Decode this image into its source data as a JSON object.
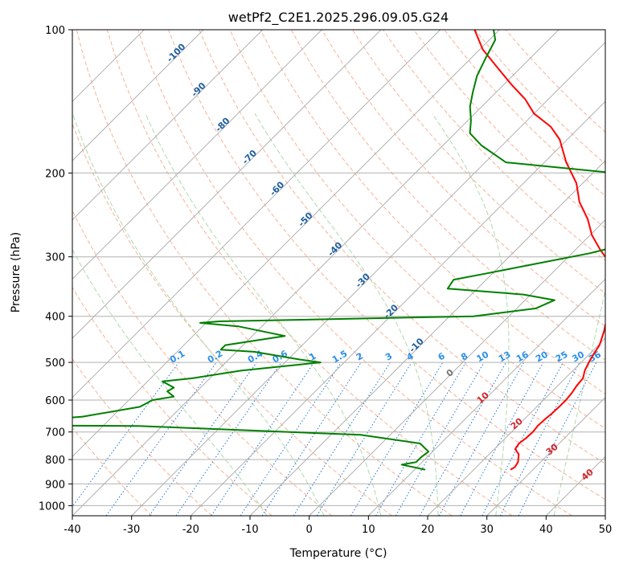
{
  "chart_data": {
    "type": "skewt",
    "title": "wetPf2_C2E1.2025.296.09.05.G24",
    "xlabel": "Temperature (°C)",
    "ylabel": "Pressure (hPa)",
    "xlim": [
      -40,
      50
    ],
    "ylim": [
      1050,
      100
    ],
    "x_ticks": [
      -40,
      -30,
      -20,
      -10,
      0,
      10,
      20,
      30,
      40,
      50
    ],
    "y_ticks": [
      100,
      200,
      300,
      400,
      500,
      600,
      700,
      800,
      900,
      1000
    ],
    "series": [
      {
        "name": "Temperature",
        "color": "#ff0000",
        "points": [
          [
            26.2,
            840
          ],
          [
            26.5,
            830
          ],
          [
            26.2,
            810
          ],
          [
            25.0,
            780
          ],
          [
            23.5,
            760
          ],
          [
            23.2,
            740
          ],
          [
            23.5,
            720
          ],
          [
            23.6,
            700
          ],
          [
            23.4,
            680
          ],
          [
            23.5,
            660
          ],
          [
            23.7,
            640
          ],
          [
            23.8,
            620
          ],
          [
            23.8,
            600
          ],
          [
            23.6,
            580
          ],
          [
            23.2,
            560
          ],
          [
            23.0,
            540
          ],
          [
            22.0,
            520
          ],
          [
            21.3,
            500
          ],
          [
            20.7,
            480
          ],
          [
            20.2,
            460
          ],
          [
            18.6,
            430
          ],
          [
            17.3,
            410
          ],
          [
            15.7,
            390
          ],
          [
            14.2,
            370
          ],
          [
            13.0,
            350
          ],
          [
            11.2,
            330
          ],
          [
            8.2,
            310
          ],
          [
            4.2,
            290
          ],
          [
            0.3,
            270
          ],
          [
            -3.1,
            250
          ],
          [
            -7.4,
            230
          ],
          [
            -11.1,
            210
          ],
          [
            -16.3,
            190
          ],
          [
            -21.3,
            170
          ],
          [
            -24.9,
            160
          ],
          [
            -30.0,
            150
          ],
          [
            -33.9,
            140
          ],
          [
            -38.9,
            130
          ],
          [
            -44.0,
            120
          ],
          [
            -49.5,
            110
          ],
          [
            -54.2,
            100
          ]
        ]
      },
      {
        "name": "Dewpoint",
        "color": "#008000",
        "points": [
          [
            11.8,
            840
          ],
          [
            7.0,
            820
          ],
          [
            9.0,
            810
          ],
          [
            9.0,
            790
          ],
          [
            9.3,
            770
          ],
          [
            6.5,
            740
          ],
          [
            -5.0,
            710
          ],
          [
            -44.0,
            680
          ],
          [
            -71.0,
            678
          ],
          [
            -68.0,
            670
          ],
          [
            -66.5,
            668
          ],
          [
            -55.0,
            650
          ],
          [
            -47.0,
            620
          ],
          [
            -46.0,
            600
          ],
          [
            -43.0,
            590
          ],
          [
            -45.0,
            575
          ],
          [
            -44.5,
            565
          ],
          [
            -47.5,
            548
          ],
          [
            -43.0,
            540
          ],
          [
            -36.0,
            520
          ],
          [
            -24.0,
            500
          ],
          [
            -28.0,
            493
          ],
          [
            -37.0,
            475
          ],
          [
            -43.0,
            470
          ],
          [
            -43.0,
            460
          ],
          [
            -34.5,
            440
          ],
          [
            -44.0,
            420
          ],
          [
            -51.0,
            413
          ],
          [
            -48.0,
            410
          ],
          [
            -6.0,
            400
          ],
          [
            3.2,
            385
          ],
          [
            5.0,
            370
          ],
          [
            -1.2,
            360
          ],
          [
            -15.0,
            350
          ],
          [
            -15.5,
            335
          ],
          [
            -11.0,
            325
          ],
          [
            -4.2,
            310
          ],
          [
            3.0,
            295
          ],
          [
            8.5,
            280
          ],
          [
            10.0,
            270
          ],
          [
            8.0,
            255
          ],
          [
            5.8,
            240
          ],
          [
            2.0,
            215
          ],
          [
            -6.5,
            200
          ],
          [
            -26.5,
            190
          ],
          [
            -33.5,
            175
          ],
          [
            -37.5,
            165
          ],
          [
            -39.5,
            155
          ],
          [
            -42.0,
            145
          ],
          [
            -44.0,
            135
          ],
          [
            -46.0,
            125
          ],
          [
            -47.5,
            115
          ],
          [
            -49.0,
            105
          ],
          [
            -51.0,
            100
          ]
        ]
      }
    ],
    "background_lines": {
      "isotherms_solid": [
        -110,
        -100,
        -90,
        -80,
        -70,
        -60,
        -50,
        -40,
        -30,
        -20,
        -10,
        0,
        10,
        20,
        30,
        40,
        50
      ],
      "dry_adiabats_C": [
        -30,
        -20,
        -10,
        0,
        10,
        20,
        30,
        40,
        50,
        60,
        70,
        80,
        90,
        100,
        110,
        120,
        130,
        140,
        150,
        160
      ],
      "moist_adiabats_C": [
        -10,
        0,
        10,
        20,
        30,
        40
      ],
      "mixing_ratio_gkg": [
        0.1,
        0.2,
        0.4,
        0.6,
        1,
        1.5,
        2,
        3,
        4,
        6,
        8,
        10,
        13,
        16,
        20,
        25,
        30,
        36
      ]
    },
    "annotations": {
      "isotherm_labels": [
        "-100",
        "-90",
        "-80",
        "-70",
        "-60",
        "-50",
        "-40",
        "-30",
        "-20",
        "-10"
      ],
      "mixing_ratio_labels": [
        "0.1",
        "0.2",
        "0.4",
        "0.6",
        "1",
        "1.5",
        "2",
        "3",
        "4",
        "6",
        "8",
        "10",
        "13",
        "16",
        "20",
        "25",
        "30",
        "36"
      ],
      "red_labels": [
        "10",
        "20",
        "30",
        "40"
      ],
      "gray_labels": [
        "0"
      ]
    },
    "colors": {
      "grid": "#b0b0b0",
      "dry_adiabat": "#f4a582",
      "moist_adiabat": "#9fd39f",
      "mixing_ratio": "#1f77d4",
      "isotherm_label": "#1f5fa0",
      "mixing_label": "#2a8fe8",
      "red_label": "#d62728",
      "gray_label": "#777777",
      "frame": "#000000"
    }
  }
}
